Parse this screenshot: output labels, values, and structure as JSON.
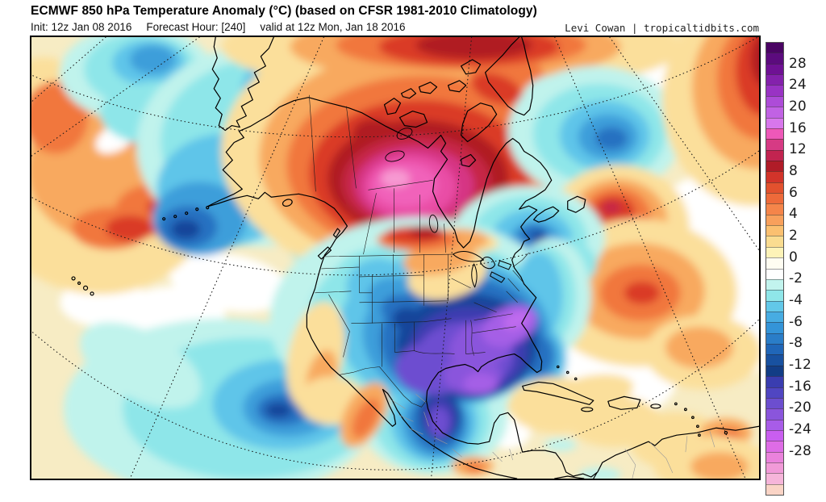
{
  "header": {
    "title": "ECMWF 850 hPa Temperature Anomaly (°C) (based on CFSR 1981-2010 Climatology)",
    "init": "Init: 12z Jan 08 2016",
    "forecast_hour": "Forecast Hour: [240]",
    "valid": "valid at 12z Mon, Jan 18 2016",
    "credit": "Levi Cowan | tropicaltidbits.com"
  },
  "colorbar": {
    "unit": "°C",
    "tick_labels": [
      "28",
      "24",
      "20",
      "16",
      "12",
      "8",
      "6",
      "4",
      "2",
      "0",
      "-2",
      "-4",
      "-6",
      "-8",
      "-12",
      "-16",
      "-20",
      "-24",
      "-28"
    ],
    "segment_colors": [
      "#4a0463",
      "#5c0b7e",
      "#6f1194",
      "#8421ac",
      "#9933c4",
      "#ad4cd8",
      "#c162e4",
      "#d877ec",
      "#ee58b8",
      "#d63a84",
      "#c22450",
      "#b01c28",
      "#d2342a",
      "#e2512e",
      "#ee6a3a",
      "#f5854a",
      "#f8a05c",
      "#fbc070",
      "#fadc90",
      "#fdf3b8",
      "#fffdf2",
      "#ffffff",
      "#c2f4ee",
      "#8fe6e9",
      "#62c8e9",
      "#47ace2",
      "#3494d8",
      "#2a7dc8",
      "#2066b8",
      "#1851a0",
      "#123d86",
      "#3a3db0",
      "#5046c2",
      "#6c4ecf",
      "#8a55dc",
      "#a85ce8",
      "#c95ef0",
      "#de6ce6",
      "#ea82dc",
      "#f19ad8",
      "#f6b5da",
      "#fad4c6"
    ]
  },
  "palette": {
    "cream": "#f7ecc4",
    "white": "#ffffff",
    "paleYellow": "#fbdf9b",
    "orange": "#f8a95e",
    "deepOrange": "#f1773c",
    "red": "#da3a26",
    "darkRed": "#b01e24",
    "crimson": "#c62846",
    "pinkRed": "#d63584",
    "pink": "#e94da6",
    "brightPink": "#f162ba",
    "lightPink": "#f79ad2",
    "cyanPale": "#c0f3ec",
    "cyan": "#8ee6e9",
    "blueLight": "#5ec5e9",
    "blue": "#3e9eda",
    "blueDeep": "#2571c1",
    "navy": "#16459a",
    "blueViolet": "#3c3eb0",
    "purple": "#6d4ed0",
    "violet": "#8a55dc",
    "violetBright": "#a55ee6",
    "magentaViolet": "#c06cee"
  },
  "map": {
    "model": "ECMWF",
    "field": "850 hPa temperature anomaly",
    "region": "North America",
    "anomaly_highlights": [
      {
        "region": "Central and northern Canada / Hudson Bay",
        "anomaly_c": "+12 to +18"
      },
      {
        "region": "Central, southern and eastern United States into Mexico",
        "anomaly_c": "-10 to -20"
      },
      {
        "region": "North Atlantic southeast of Greenland",
        "anomaly_c": "-4 to -8"
      },
      {
        "region": "Northeast Pacific and Bering Sea",
        "anomaly_c": "-2 to -8"
      },
      {
        "region": "Subtropical western Atlantic",
        "anomaly_c": "+4 to +10"
      },
      {
        "region": "Gulf of Alaska / west-central Pacific swirl",
        "anomaly_c": "+2 to +8"
      }
    ]
  }
}
